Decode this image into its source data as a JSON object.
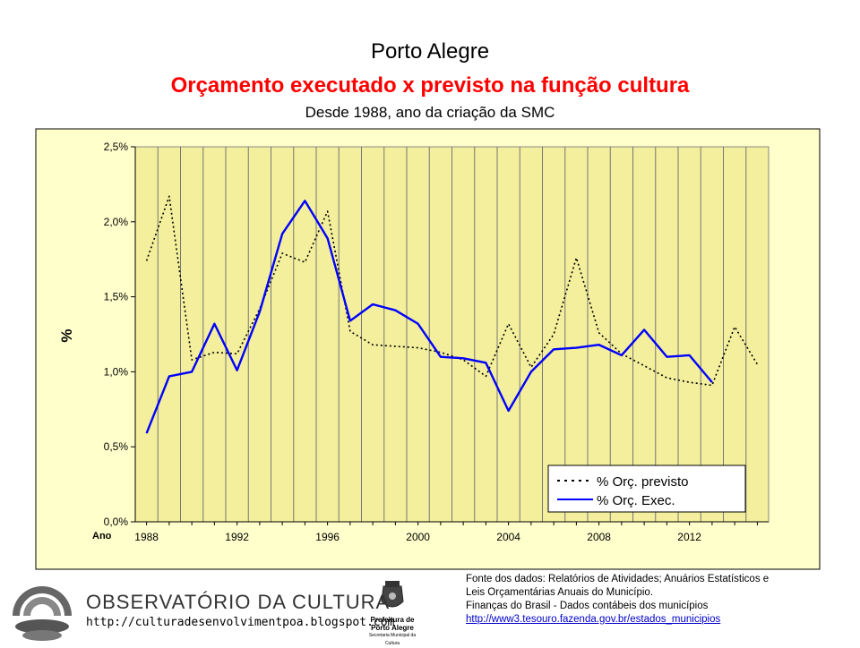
{
  "header": {
    "city": "Porto Alegre",
    "title": "Orçamento executado x previsto na função cultura",
    "subtitle": "Desde 1988, ano da criação da SMC"
  },
  "chart_data": {
    "type": "line",
    "ylabel": "%",
    "xlabel": "Ano",
    "ylim": [
      0,
      2.5
    ],
    "xlim": [
      1987.5,
      2015.5
    ],
    "y_ticks": [
      "0,0%",
      "0,5%",
      "1,0%",
      "1,5%",
      "2,0%",
      "2,5%"
    ],
    "x_ticks": [
      "1988",
      "1992",
      "1996",
      "2000",
      "2004",
      "2008",
      "2012"
    ],
    "grid": "vertical",
    "legend_position": "bottom-right",
    "colors": {
      "plot_bg": "#f3ef9c",
      "frame_bg": "#ffffcc",
      "previsto": "#000000",
      "exec": "#0000ff"
    },
    "series": [
      {
        "name": "% Orç. previsto",
        "style": "dotted",
        "x": [
          1988,
          1989,
          1990,
          1991,
          1992,
          1993,
          1994,
          1995,
          1996,
          1997,
          1998,
          1999,
          2000,
          2001,
          2002,
          2003,
          2004,
          2005,
          2006,
          2007,
          2008,
          2009,
          2010,
          2011,
          2012,
          2013,
          2014,
          2015
        ],
        "values": [
          1.74,
          2.17,
          1.08,
          1.13,
          1.12,
          1.42,
          1.79,
          1.73,
          2.07,
          1.27,
          1.18,
          1.17,
          1.16,
          1.13,
          1.08,
          0.97,
          1.32,
          1.03,
          1.25,
          1.76,
          1.26,
          1.12,
          1.04,
          0.96,
          0.93,
          0.91,
          1.3,
          1.05
        ]
      },
      {
        "name": "% Orç. Exec.",
        "style": "solid",
        "x": [
          1988,
          1989,
          1990,
          1991,
          1992,
          1993,
          1994,
          1995,
          1996,
          1997,
          1998,
          1999,
          2000,
          2001,
          2002,
          2003,
          2004,
          2005,
          2006,
          2007,
          2008,
          2009,
          2010,
          2011,
          2012,
          2013
        ],
        "values": [
          0.59,
          0.97,
          1.0,
          1.32,
          1.01,
          1.4,
          1.92,
          2.14,
          1.89,
          1.34,
          1.45,
          1.41,
          1.32,
          1.1,
          1.09,
          1.06,
          0.74,
          1.0,
          1.15,
          1.16,
          1.18,
          1.11,
          1.28,
          1.1,
          1.11,
          0.93
        ]
      }
    ]
  },
  "footer": {
    "brand": "OBSERVATÓRIO DA CULTURA",
    "url": "http://culturadesenvolvimentpoa.blogspot.com",
    "pref_line1": "Prefeitura de",
    "pref_line2": "Porto Alegre",
    "pref_sub": "Secretaria Municipal da Cultura",
    "source_lines": [
      "Fonte dos dados: Relatórios de Atividades; Anuários Estatísticos e",
      "Leis Orçamentárias Anuais do Município.",
      "Finanças do Brasil - Dados contábeis dos municípios"
    ],
    "source_link": "http://www3.tesouro.fazenda.gov.br/estados_municipios"
  }
}
